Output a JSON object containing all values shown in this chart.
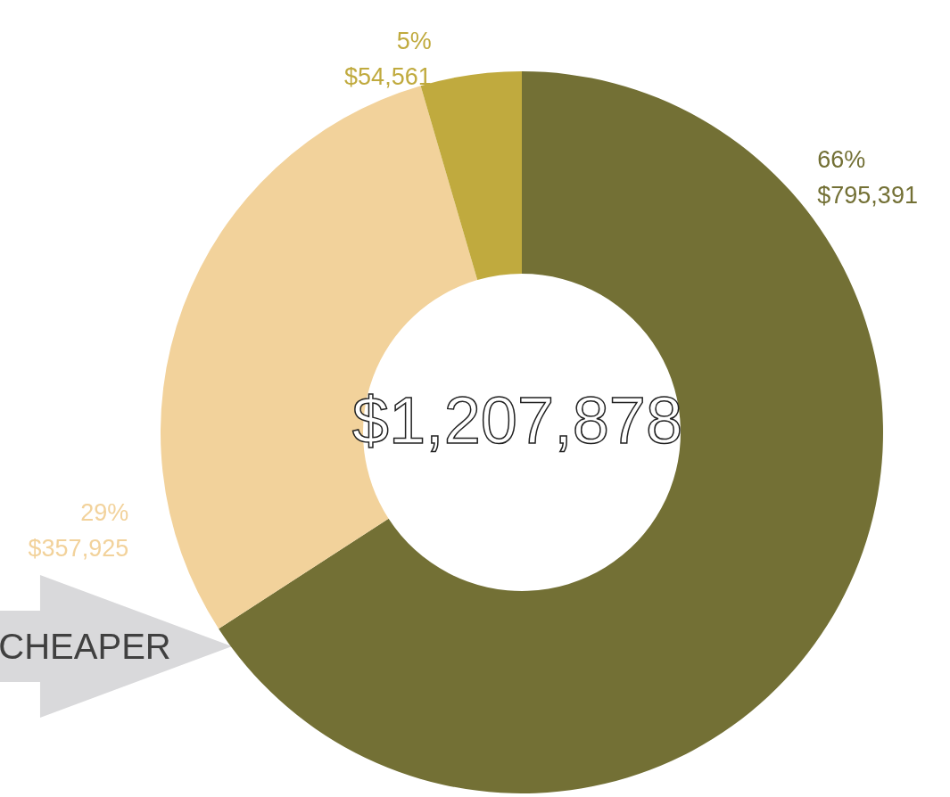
{
  "chart_data": {
    "type": "donut",
    "categories": [
      null,
      null,
      null
    ],
    "values": [
      795391,
      357925,
      54561
    ],
    "colors": [
      "#737035",
      "#f2d29b",
      "#c0aa3e"
    ],
    "value_labels": [
      "66%\n$795,391",
      "29%\n$357,925",
      "5%\n$54,561"
    ],
    "annotations": [
      "$1,207,878",
      "CHEAPER"
    ]
  }
}
